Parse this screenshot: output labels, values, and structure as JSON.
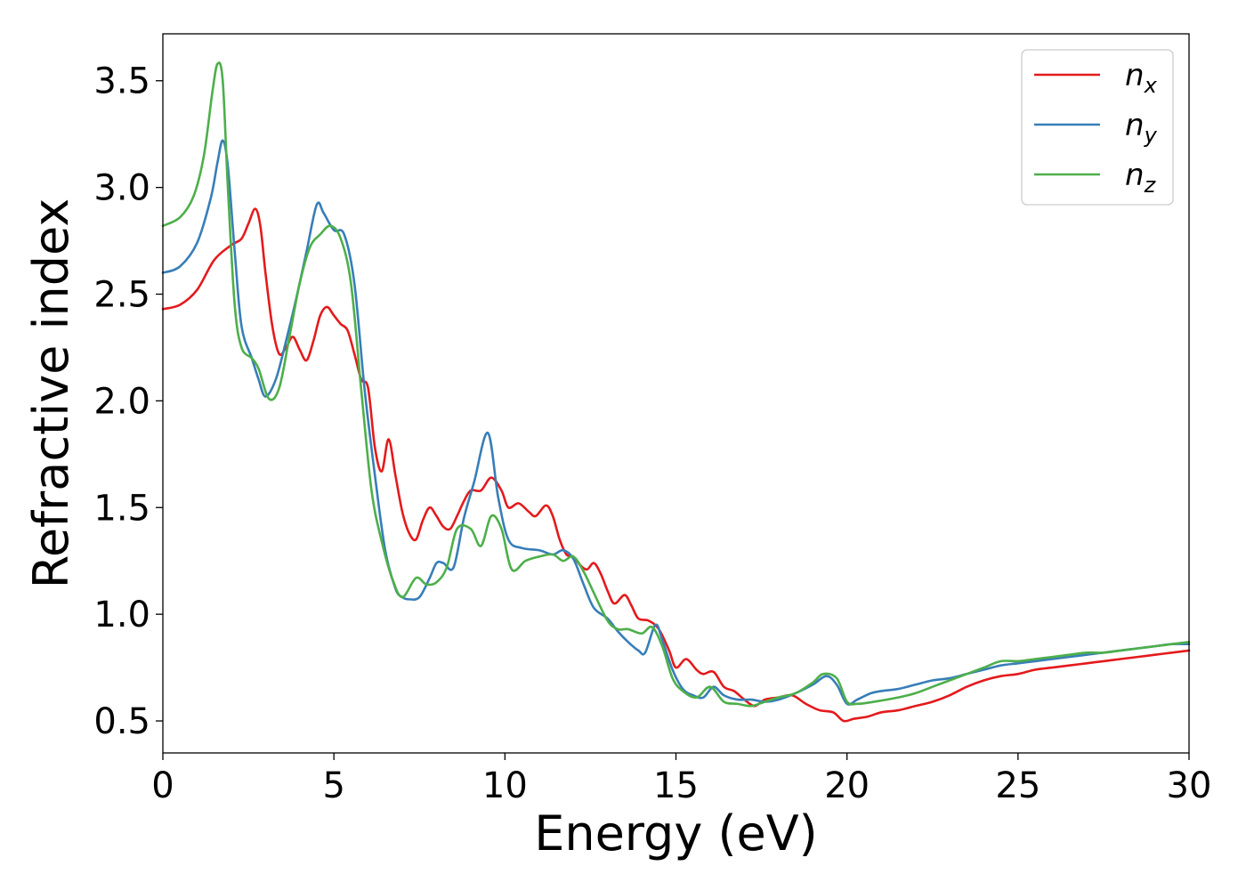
{
  "chart_data": {
    "type": "line",
    "xlabel": "Energy (eV)",
    "ylabel": "Refractive index",
    "xlim": [
      0,
      30
    ],
    "ylim": [
      0.35,
      3.72
    ],
    "xticks": [
      0,
      5,
      10,
      15,
      20,
      25,
      30
    ],
    "xtick_labels": [
      "0",
      "5",
      "10",
      "15",
      "20",
      "25",
      "30"
    ],
    "yticks": [
      0.5,
      1.0,
      1.5,
      2.0,
      2.5,
      3.0,
      3.5
    ],
    "ytick_labels": [
      "0.5",
      "1.0",
      "1.5",
      "2.0",
      "2.5",
      "3.0",
      "3.5"
    ],
    "grid": false,
    "legend_position": "top-right",
    "series": [
      {
        "name": "n_x",
        "legend_base": "n",
        "legend_sub": "x",
        "color": "#e41a1c",
        "points": [
          [
            0,
            2.43
          ],
          [
            0.5,
            2.45
          ],
          [
            1.0,
            2.52
          ],
          [
            1.5,
            2.66
          ],
          [
            2.0,
            2.73
          ],
          [
            2.3,
            2.76
          ],
          [
            2.5,
            2.83
          ],
          [
            2.7,
            2.9
          ],
          [
            2.85,
            2.82
          ],
          [
            3.0,
            2.6
          ],
          [
            3.2,
            2.35
          ],
          [
            3.4,
            2.22
          ],
          [
            3.6,
            2.25
          ],
          [
            3.8,
            2.3
          ],
          [
            4.0,
            2.24
          ],
          [
            4.2,
            2.19
          ],
          [
            4.4,
            2.28
          ],
          [
            4.6,
            2.4
          ],
          [
            4.8,
            2.44
          ],
          [
            5.0,
            2.4
          ],
          [
            5.2,
            2.36
          ],
          [
            5.4,
            2.33
          ],
          [
            5.6,
            2.22
          ],
          [
            5.8,
            2.1
          ],
          [
            6.0,
            2.06
          ],
          [
            6.2,
            1.78
          ],
          [
            6.4,
            1.67
          ],
          [
            6.6,
            1.82
          ],
          [
            6.8,
            1.65
          ],
          [
            7.0,
            1.48
          ],
          [
            7.2,
            1.38
          ],
          [
            7.4,
            1.35
          ],
          [
            7.6,
            1.44
          ],
          [
            7.8,
            1.5
          ],
          [
            8.0,
            1.46
          ],
          [
            8.2,
            1.41
          ],
          [
            8.4,
            1.4
          ],
          [
            8.6,
            1.46
          ],
          [
            8.8,
            1.53
          ],
          [
            9.0,
            1.58
          ],
          [
            9.3,
            1.58
          ],
          [
            9.6,
            1.64
          ],
          [
            9.9,
            1.58
          ],
          [
            10.1,
            1.5
          ],
          [
            10.4,
            1.52
          ],
          [
            10.7,
            1.48
          ],
          [
            10.9,
            1.46
          ],
          [
            11.2,
            1.51
          ],
          [
            11.4,
            1.46
          ],
          [
            11.6,
            1.35
          ],
          [
            11.8,
            1.28
          ],
          [
            12.0,
            1.27
          ],
          [
            12.2,
            1.23
          ],
          [
            12.4,
            1.21
          ],
          [
            12.6,
            1.24
          ],
          [
            12.8,
            1.19
          ],
          [
            13.0,
            1.11
          ],
          [
            13.2,
            1.05
          ],
          [
            13.5,
            1.09
          ],
          [
            13.7,
            1.04
          ],
          [
            13.9,
            0.98
          ],
          [
            14.2,
            0.97
          ],
          [
            14.5,
            0.93
          ],
          [
            14.8,
            0.83
          ],
          [
            15.0,
            0.75
          ],
          [
            15.3,
            0.79
          ],
          [
            15.6,
            0.74
          ],
          [
            15.8,
            0.72
          ],
          [
            16.1,
            0.73
          ],
          [
            16.4,
            0.66
          ],
          [
            16.7,
            0.64
          ],
          [
            17.0,
            0.6
          ],
          [
            17.3,
            0.57
          ],
          [
            17.6,
            0.6
          ],
          [
            18.0,
            0.61
          ],
          [
            18.4,
            0.62
          ],
          [
            18.8,
            0.58
          ],
          [
            19.2,
            0.55
          ],
          [
            19.6,
            0.54
          ],
          [
            19.9,
            0.5
          ],
          [
            20.2,
            0.51
          ],
          [
            20.6,
            0.52
          ],
          [
            21.0,
            0.54
          ],
          [
            21.5,
            0.55
          ],
          [
            22.0,
            0.57
          ],
          [
            22.5,
            0.59
          ],
          [
            23.0,
            0.62
          ],
          [
            23.5,
            0.66
          ],
          [
            24.0,
            0.69
          ],
          [
            24.5,
            0.71
          ],
          [
            25.0,
            0.72
          ],
          [
            25.5,
            0.74
          ],
          [
            26.0,
            0.75
          ],
          [
            26.5,
            0.76
          ],
          [
            27.0,
            0.77
          ],
          [
            27.5,
            0.78
          ],
          [
            28.0,
            0.79
          ],
          [
            28.5,
            0.8
          ],
          [
            29.0,
            0.81
          ],
          [
            29.5,
            0.82
          ],
          [
            30.0,
            0.83
          ]
        ]
      },
      {
        "name": "n_y",
        "legend_base": "n",
        "legend_sub": "y",
        "color": "#377eb8",
        "points": [
          [
            0,
            2.6
          ],
          [
            0.5,
            2.63
          ],
          [
            1.0,
            2.74
          ],
          [
            1.4,
            2.95
          ],
          [
            1.6,
            3.12
          ],
          [
            1.75,
            3.22
          ],
          [
            1.9,
            3.1
          ],
          [
            2.1,
            2.7
          ],
          [
            2.3,
            2.35
          ],
          [
            2.6,
            2.2
          ],
          [
            2.8,
            2.1
          ],
          [
            3.0,
            2.02
          ],
          [
            3.3,
            2.1
          ],
          [
            3.6,
            2.28
          ],
          [
            3.9,
            2.48
          ],
          [
            4.2,
            2.7
          ],
          [
            4.5,
            2.92
          ],
          [
            4.7,
            2.88
          ],
          [
            5.0,
            2.8
          ],
          [
            5.3,
            2.78
          ],
          [
            5.6,
            2.55
          ],
          [
            5.9,
            2.05
          ],
          [
            6.2,
            1.65
          ],
          [
            6.5,
            1.3
          ],
          [
            6.8,
            1.12
          ],
          [
            7.0,
            1.08
          ],
          [
            7.2,
            1.07
          ],
          [
            7.5,
            1.08
          ],
          [
            7.8,
            1.17
          ],
          [
            8.0,
            1.24
          ],
          [
            8.2,
            1.24
          ],
          [
            8.5,
            1.22
          ],
          [
            8.8,
            1.45
          ],
          [
            9.1,
            1.62
          ],
          [
            9.5,
            1.85
          ],
          [
            9.8,
            1.55
          ],
          [
            10.1,
            1.35
          ],
          [
            10.5,
            1.31
          ],
          [
            11.0,
            1.3
          ],
          [
            11.4,
            1.28
          ],
          [
            11.7,
            1.3
          ],
          [
            12.0,
            1.26
          ],
          [
            12.3,
            1.14
          ],
          [
            12.6,
            1.03
          ],
          [
            13.0,
            0.98
          ],
          [
            13.3,
            0.92
          ],
          [
            13.6,
            0.87
          ],
          [
            13.9,
            0.83
          ],
          [
            14.1,
            0.82
          ],
          [
            14.4,
            0.95
          ],
          [
            14.6,
            0.88
          ],
          [
            14.9,
            0.74
          ],
          [
            15.2,
            0.65
          ],
          [
            15.5,
            0.62
          ],
          [
            15.8,
            0.61
          ],
          [
            16.1,
            0.66
          ],
          [
            16.4,
            0.62
          ],
          [
            16.8,
            0.6
          ],
          [
            17.2,
            0.6
          ],
          [
            17.6,
            0.59
          ],
          [
            18.0,
            0.6
          ],
          [
            18.5,
            0.63
          ],
          [
            19.0,
            0.67
          ],
          [
            19.4,
            0.71
          ],
          [
            19.7,
            0.67
          ],
          [
            20.0,
            0.58
          ],
          [
            20.3,
            0.6
          ],
          [
            20.7,
            0.63
          ],
          [
            21.0,
            0.64
          ],
          [
            21.5,
            0.65
          ],
          [
            22.0,
            0.67
          ],
          [
            22.5,
            0.69
          ],
          [
            23.0,
            0.7
          ],
          [
            23.5,
            0.72
          ],
          [
            24.0,
            0.74
          ],
          [
            24.5,
            0.76
          ],
          [
            25.0,
            0.77
          ],
          [
            25.5,
            0.78
          ],
          [
            26.0,
            0.79
          ],
          [
            26.5,
            0.8
          ],
          [
            27.0,
            0.81
          ],
          [
            27.5,
            0.82
          ],
          [
            28.0,
            0.83
          ],
          [
            28.5,
            0.84
          ],
          [
            29.0,
            0.85
          ],
          [
            29.5,
            0.86
          ],
          [
            30.0,
            0.86
          ]
        ]
      },
      {
        "name": "n_z",
        "legend_base": "n",
        "legend_sub": "z",
        "color": "#4daf4a",
        "points": [
          [
            0,
            2.82
          ],
          [
            0.5,
            2.86
          ],
          [
            0.9,
            2.96
          ],
          [
            1.2,
            3.15
          ],
          [
            1.45,
            3.45
          ],
          [
            1.6,
            3.58
          ],
          [
            1.75,
            3.5
          ],
          [
            1.9,
            3.0
          ],
          [
            2.1,
            2.45
          ],
          [
            2.3,
            2.25
          ],
          [
            2.6,
            2.2
          ],
          [
            2.8,
            2.15
          ],
          [
            3.1,
            2.01
          ],
          [
            3.4,
            2.06
          ],
          [
            3.7,
            2.3
          ],
          [
            4.0,
            2.55
          ],
          [
            4.3,
            2.72
          ],
          [
            4.6,
            2.78
          ],
          [
            4.9,
            2.82
          ],
          [
            5.2,
            2.76
          ],
          [
            5.5,
            2.55
          ],
          [
            5.8,
            2.05
          ],
          [
            6.1,
            1.58
          ],
          [
            6.4,
            1.34
          ],
          [
            6.7,
            1.17
          ],
          [
            7.0,
            1.08
          ],
          [
            7.4,
            1.17
          ],
          [
            7.7,
            1.14
          ],
          [
            8.0,
            1.15
          ],
          [
            8.3,
            1.22
          ],
          [
            8.6,
            1.4
          ],
          [
            9.0,
            1.4
          ],
          [
            9.3,
            1.32
          ],
          [
            9.6,
            1.46
          ],
          [
            9.9,
            1.4
          ],
          [
            10.2,
            1.21
          ],
          [
            10.6,
            1.25
          ],
          [
            11.0,
            1.27
          ],
          [
            11.4,
            1.28
          ],
          [
            11.7,
            1.25
          ],
          [
            12.0,
            1.27
          ],
          [
            12.3,
            1.2
          ],
          [
            12.6,
            1.1
          ],
          [
            13.0,
            0.97
          ],
          [
            13.3,
            0.93
          ],
          [
            13.6,
            0.93
          ],
          [
            14.0,
            0.91
          ],
          [
            14.3,
            0.94
          ],
          [
            14.6,
            0.85
          ],
          [
            14.9,
            0.7
          ],
          [
            15.2,
            0.64
          ],
          [
            15.6,
            0.61
          ],
          [
            16.0,
            0.66
          ],
          [
            16.4,
            0.59
          ],
          [
            16.8,
            0.58
          ],
          [
            17.2,
            0.57
          ],
          [
            17.6,
            0.59
          ],
          [
            18.0,
            0.61
          ],
          [
            18.5,
            0.63
          ],
          [
            19.0,
            0.68
          ],
          [
            19.3,
            0.72
          ],
          [
            19.7,
            0.7
          ],
          [
            20.0,
            0.59
          ],
          [
            20.3,
            0.58
          ],
          [
            20.8,
            0.59
          ],
          [
            21.5,
            0.61
          ],
          [
            22.0,
            0.63
          ],
          [
            22.5,
            0.66
          ],
          [
            23.0,
            0.69
          ],
          [
            23.5,
            0.72
          ],
          [
            24.0,
            0.75
          ],
          [
            24.5,
            0.78
          ],
          [
            25.0,
            0.78
          ],
          [
            25.5,
            0.79
          ],
          [
            26.0,
            0.8
          ],
          [
            26.5,
            0.81
          ],
          [
            27.0,
            0.82
          ],
          [
            27.5,
            0.82
          ],
          [
            28.0,
            0.83
          ],
          [
            28.5,
            0.84
          ],
          [
            29.0,
            0.85
          ],
          [
            29.5,
            0.86
          ],
          [
            30.0,
            0.87
          ]
        ]
      }
    ]
  }
}
